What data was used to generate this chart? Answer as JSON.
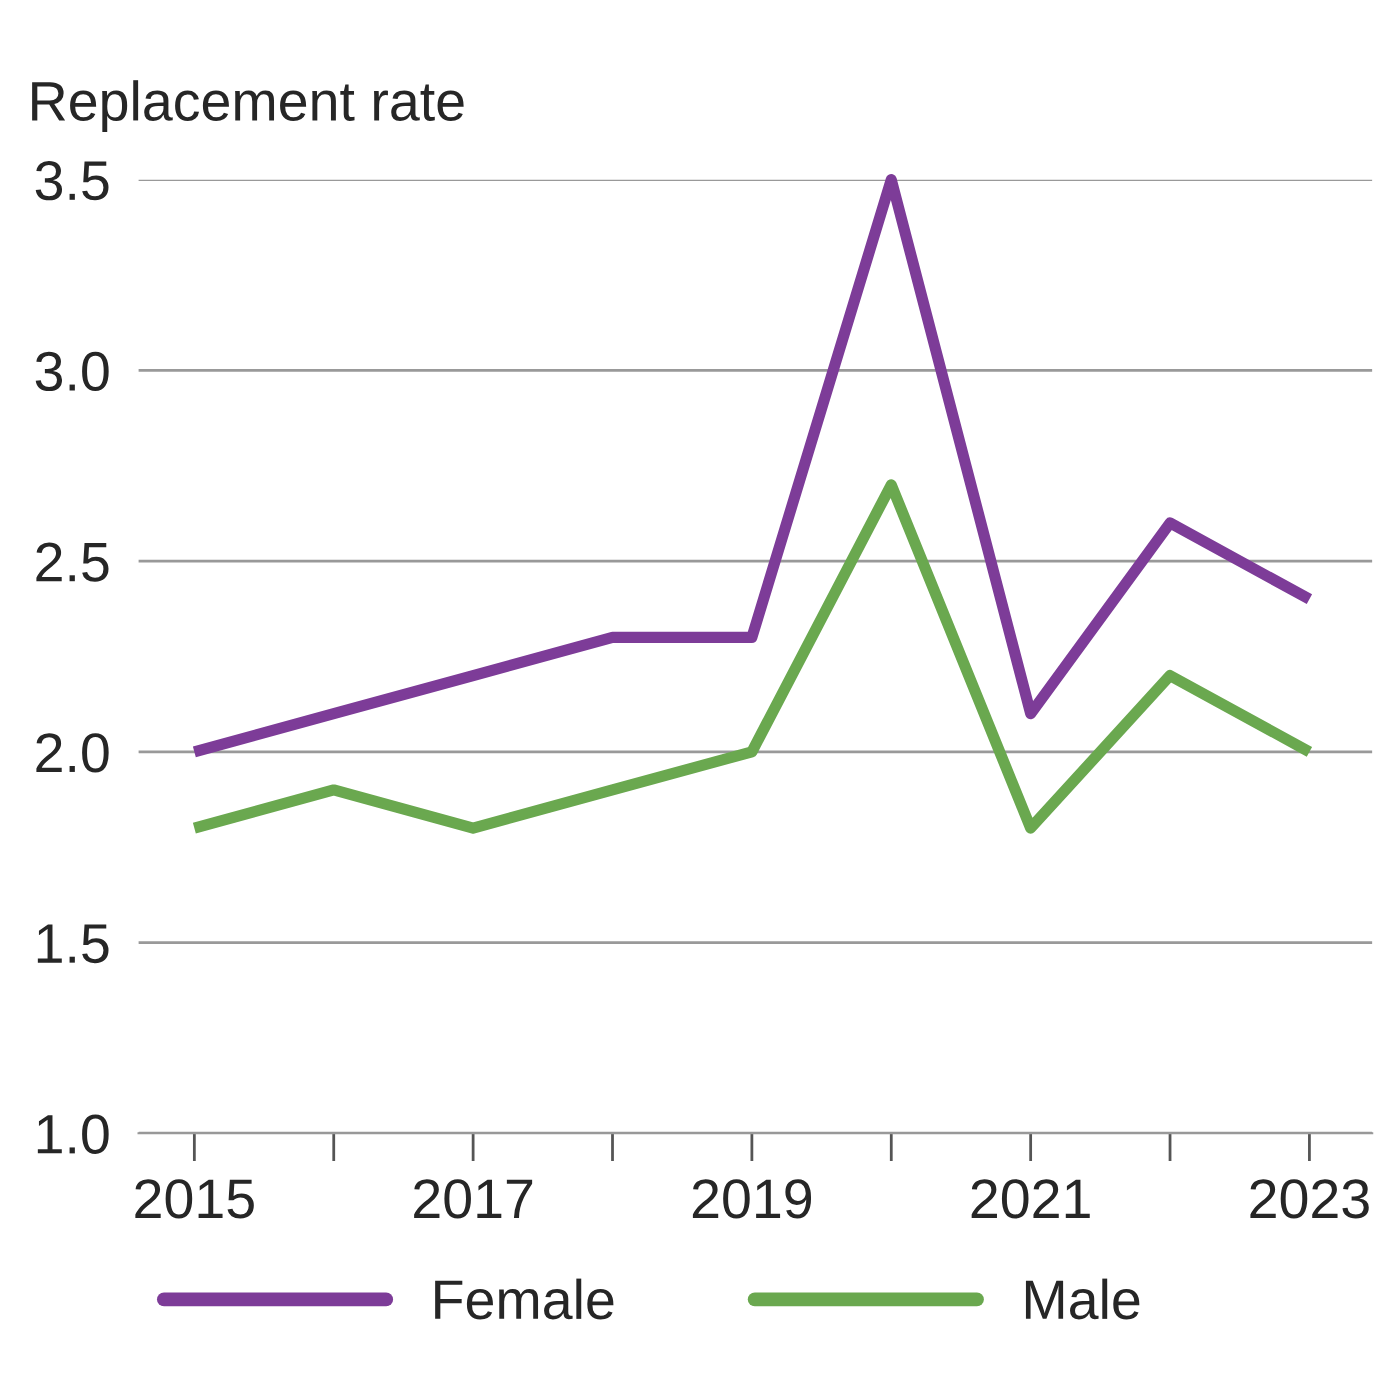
{
  "chart_data": {
    "type": "line",
    "ylabel": "Replacement rate",
    "x": [
      2015,
      2016,
      2017,
      2018,
      2019,
      2020,
      2021,
      2022,
      2023
    ],
    "series": [
      {
        "name": "Female",
        "color": "#7d3c98",
        "values": [
          2.0,
          2.1,
          2.2,
          2.3,
          2.3,
          3.5,
          2.1,
          2.6,
          2.4
        ]
      },
      {
        "name": "Male",
        "color": "#6aa84f",
        "values": [
          1.8,
          1.9,
          1.8,
          1.9,
          2.0,
          2.7,
          1.8,
          2.2,
          2.0
        ]
      }
    ],
    "xlim": [
      2014.6,
      2023.45
    ],
    "xticks": [
      2015,
      {
        "value": 2016,
        "label": null
      },
      2017,
      {
        "value": 2018,
        "label": null
      },
      2019,
      {
        "value": 2020,
        "label": null
      },
      2021,
      {
        "value": 2022,
        "label": null
      },
      2023
    ],
    "ylim": [
      1.0,
      3.5
    ],
    "yticks": [
      {
        "value": 1,
        "label": "1.0"
      },
      1.5,
      {
        "value": 2,
        "label": "2.0"
      },
      2.5,
      {
        "value": 3,
        "label": "3.0"
      },
      3.5
    ],
    "grid": "y",
    "legend": "bottom",
    "marker": "none",
    "line_style": "solid"
  }
}
